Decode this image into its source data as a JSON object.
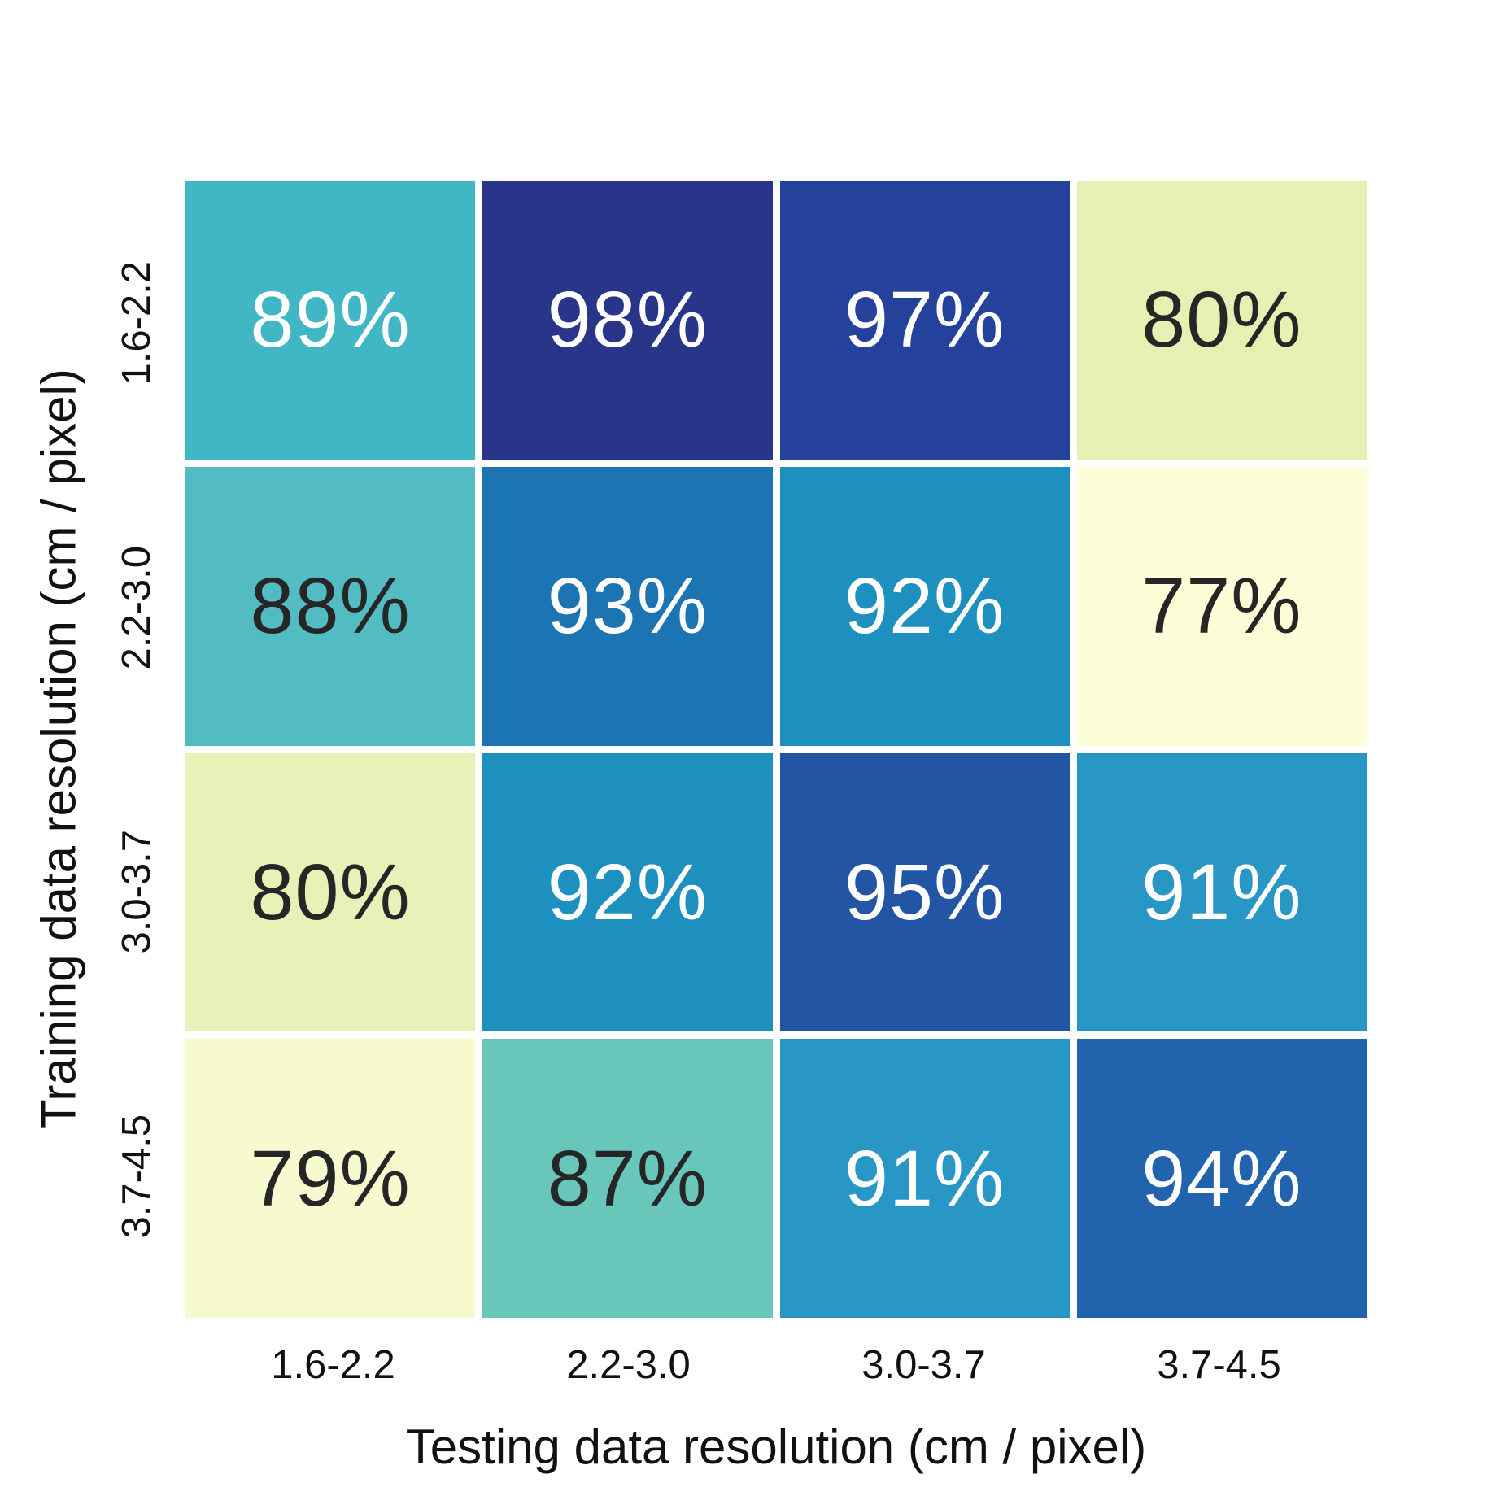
{
  "figure": {
    "background": "#ffffff"
  },
  "chart_data": {
    "type": "heatmap",
    "title": "",
    "xlabel": "Testing data resolution (cm / pixel)",
    "ylabel": "Training data resolution (cm / pixel)",
    "x_categories": [
      "1.6-2.2",
      "2.2-3.0",
      "3.0-3.7",
      "3.7-4.5"
    ],
    "y_categories": [
      "1.6-2.2",
      "2.2-3.0",
      "3.0-3.7",
      "3.7-4.5"
    ],
    "values": [
      [
        89,
        98,
        97,
        80
      ],
      [
        88,
        93,
        92,
        77
      ],
      [
        80,
        92,
        95,
        91
      ],
      [
        79,
        87,
        91,
        94
      ]
    ],
    "cell_labels": [
      [
        "89%",
        "98%",
        "97%",
        "80%"
      ],
      [
        "88%",
        "93%",
        "92%",
        "77%"
      ],
      [
        "80%",
        "92%",
        "95%",
        "91%"
      ],
      [
        "79%",
        "87%",
        "91%",
        "94%"
      ]
    ],
    "cell_colors": [
      [
        "#41b6c4",
        "#293588",
        "#24429b",
        "#e7efb2"
      ],
      [
        "#52bcc2",
        "#1c74b3",
        "#1d90c0",
        "#fdfdd7"
      ],
      [
        "#e9f0b8",
        "#1d90c0",
        "#2355a5",
        "#2997c6"
      ],
      [
        "#f7f9cf",
        "#68c6bb",
        "#2997c6",
        "#2263ae"
      ]
    ],
    "text_colors": [
      [
        "#ffffff",
        "#ffffff",
        "#ffffff",
        "#262626"
      ],
      [
        "#262626",
        "#ffffff",
        "#ffffff",
        "#262626"
      ],
      [
        "#262626",
        "#ffffff",
        "#ffffff",
        "#ffffff"
      ],
      [
        "#262626",
        "#262626",
        "#ffffff",
        "#ffffff"
      ]
    ],
    "colormap": "YlGnBu",
    "grid_gap_color": "#ffffff",
    "legend_position": "none",
    "value_range_hint": [
      77,
      98
    ]
  }
}
